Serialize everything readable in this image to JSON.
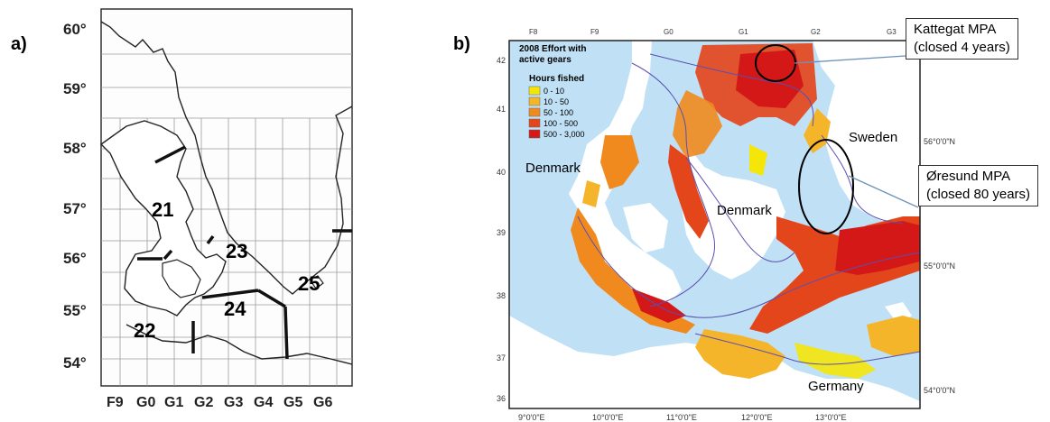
{
  "panel_a": {
    "label": "a)",
    "lat_labels": [
      "60°",
      "59°",
      "58°",
      "57°",
      "56°",
      "55°",
      "54°"
    ],
    "lon_labels": [
      "F9",
      "G0",
      "G1",
      "G2",
      "G3",
      "G4",
      "G5",
      "G6"
    ],
    "areas": [
      "21",
      "22",
      "23",
      "24",
      "25"
    ]
  },
  "panel_b": {
    "label": "b)",
    "legend": {
      "title": "2008 Effort with active gears",
      "subtitle": "Hours fished",
      "items": [
        {
          "label": "0 - 10",
          "color": "#f5e60a"
        },
        {
          "label": "10 - 50",
          "color": "#f5b52a"
        },
        {
          "label": "50 - 100",
          "color": "#f08a1e"
        },
        {
          "label": "100 - 500",
          "color": "#e4461c"
        },
        {
          "label": "500 - 3,000",
          "color": "#d41818"
        }
      ]
    },
    "top_labels": [
      "F8",
      "F9",
      "G0",
      "G1",
      "G2",
      "G3"
    ],
    "left_labels": [
      "42",
      "41",
      "40",
      "39",
      "38",
      "37",
      "36"
    ],
    "right_labels": [
      "56°0'0\"N",
      "55°0'0\"N",
      "54°0'0\"N"
    ],
    "bottom_labels": [
      "9°0'0\"E",
      "10°0'0\"E",
      "11°0'0\"E",
      "12°0'0\"E",
      "13°0'0\"E"
    ],
    "place_names": [
      "Sweden",
      "Denmark",
      "Denmark",
      "Germany"
    ],
    "callouts": [
      {
        "line1": "Kattegat MPA",
        "line2": "(closed 4 years)"
      },
      {
        "line1": "Øresund MPA",
        "line2": "(closed 80 years)"
      }
    ],
    "colors": {
      "sea": "#bfe0f5",
      "depth_contour": "#5a4fb0",
      "land": "#ffffff"
    }
  }
}
